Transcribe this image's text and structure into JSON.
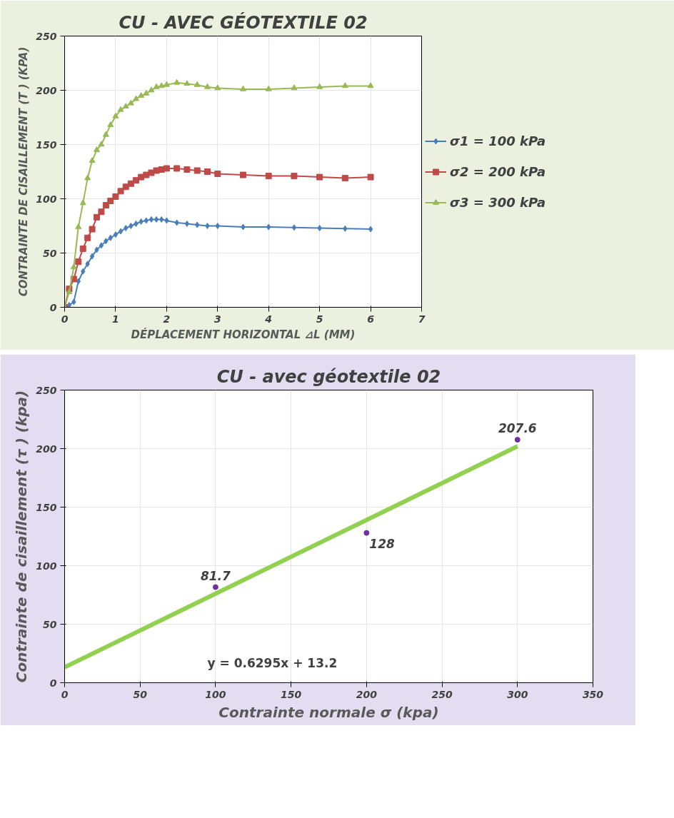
{
  "chart_data": [
    {
      "type": "line",
      "title": "CU - AVEC GÉOTEXTILE 02",
      "xlabel": "DÉPLACEMENT HORIZONTAL ⊿L (MM)",
      "ylabel": "CONTRAINTE DE CISAILLEMENT (T ) (KPA)",
      "x": [
        0,
        0.09,
        0.18,
        0.27,
        0.36,
        0.45,
        0.54,
        0.63,
        0.72,
        0.81,
        0.9,
        1.0,
        1.1,
        1.2,
        1.3,
        1.4,
        1.5,
        1.6,
        1.7,
        1.8,
        1.9,
        2.0,
        2.2,
        2.4,
        2.6,
        2.8,
        3.0,
        3.5,
        4.0,
        4.5,
        5.0,
        5.5,
        6.0
      ],
      "series": [
        {
          "name": "σ1 = 100 kPa",
          "color": "#4a7ebb",
          "marker": "diamond",
          "values": [
            0,
            2,
            5,
            24,
            33,
            40,
            47,
            53,
            57,
            61,
            64,
            67,
            70,
            73,
            75,
            77,
            79,
            80,
            81,
            81,
            81,
            80,
            78,
            77,
            76,
            75,
            75,
            74,
            74,
            73.5,
            73,
            72.5,
            72
          ]
        },
        {
          "name": "σ2 = 200 kPa",
          "color": "#be4b48",
          "marker": "square",
          "values": [
            0,
            17,
            26,
            42,
            54,
            64,
            72,
            83,
            88,
            94,
            98,
            102,
            107,
            111,
            114,
            117,
            120,
            122,
            124,
            126,
            127,
            128,
            128,
            127,
            126,
            125,
            123,
            122,
            121,
            121,
            120,
            119,
            120
          ]
        },
        {
          "name": "σ3 = 300 kPa",
          "color": "#98b954",
          "marker": "triangle",
          "values": [
            0,
            14,
            37,
            74,
            96,
            119,
            135,
            145,
            150,
            159,
            168,
            176,
            182,
            185,
            188,
            192,
            195,
            197,
            200,
            203,
            204,
            205,
            207,
            206,
            205,
            203,
            202,
            201,
            201,
            202,
            203,
            204,
            204
          ]
        }
      ],
      "xlim": [
        0,
        7
      ],
      "xticks": [
        0,
        1,
        2,
        3,
        4,
        5,
        6,
        7
      ],
      "ylim": [
        0,
        250
      ],
      "yticks": [
        0,
        50,
        100,
        150,
        200,
        250
      ],
      "grid": true,
      "legend": "right"
    },
    {
      "type": "scatter",
      "title": "CU - avec géotextile 02",
      "xlabel": "Contrainte normale σ (kpa)",
      "ylabel": "Contrainte de cisaillement (τ ) (kpa)",
      "x": [
        100,
        200,
        300
      ],
      "series": [
        {
          "color": "#7030a0",
          "values": [
            81.7,
            128,
            207.6
          ],
          "value_labels": [
            "81.7",
            "128",
            "207.6"
          ]
        },
        {
          "type": "line",
          "color": "#92d050",
          "x": [
            0,
            300
          ],
          "values": [
            13.2,
            202
          ]
        }
      ],
      "annotations": [
        "y = 0.6295x + 13.2"
      ],
      "xlim": [
        0,
        350
      ],
      "xticks": [
        0,
        50,
        100,
        150,
        200,
        250,
        300,
        350
      ],
      "ylim": [
        0,
        250
      ],
      "yticks": [
        0,
        50,
        100,
        150,
        200,
        250
      ],
      "grid": true
    }
  ]
}
